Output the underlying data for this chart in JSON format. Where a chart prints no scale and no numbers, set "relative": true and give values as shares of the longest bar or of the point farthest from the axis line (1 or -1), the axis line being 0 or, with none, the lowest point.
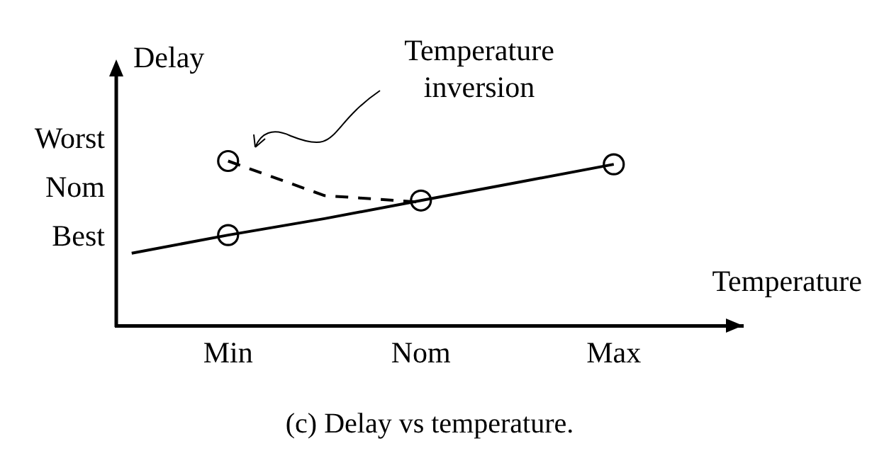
{
  "chart_data": {
    "type": "line",
    "title": "(c) Delay vs temperature.",
    "xlabel": "Temperature",
    "ylabel": "Delay",
    "relative": true,
    "categories": [
      null,
      "Min",
      null,
      "Nom",
      null,
      "Max"
    ],
    "grid": false,
    "legend": false,
    "series": [
      {
        "color": "#000000",
        "values": [
          0.44,
          0.55,
          0.65,
          0.76,
          0.87,
          0.98
        ],
        "marker": "none",
        "line_style": "solid"
      },
      {
        "color": "#000000",
        "values": [
          null,
          1.0,
          0.79,
          0.75,
          null,
          null
        ],
        "marker": "none",
        "line_style": "dashed"
      },
      {
        "type": "scatter",
        "color": "#000000",
        "x": [
          "Min",
          "Min",
          "Nom",
          "Max"
        ],
        "values": [
          1.0,
          0.55,
          0.76,
          0.98
        ],
        "marker": "circle"
      }
    ],
    "annotations": [
      "Temperature inversion",
      "Worst",
      "Nom",
      "Best"
    ]
  }
}
